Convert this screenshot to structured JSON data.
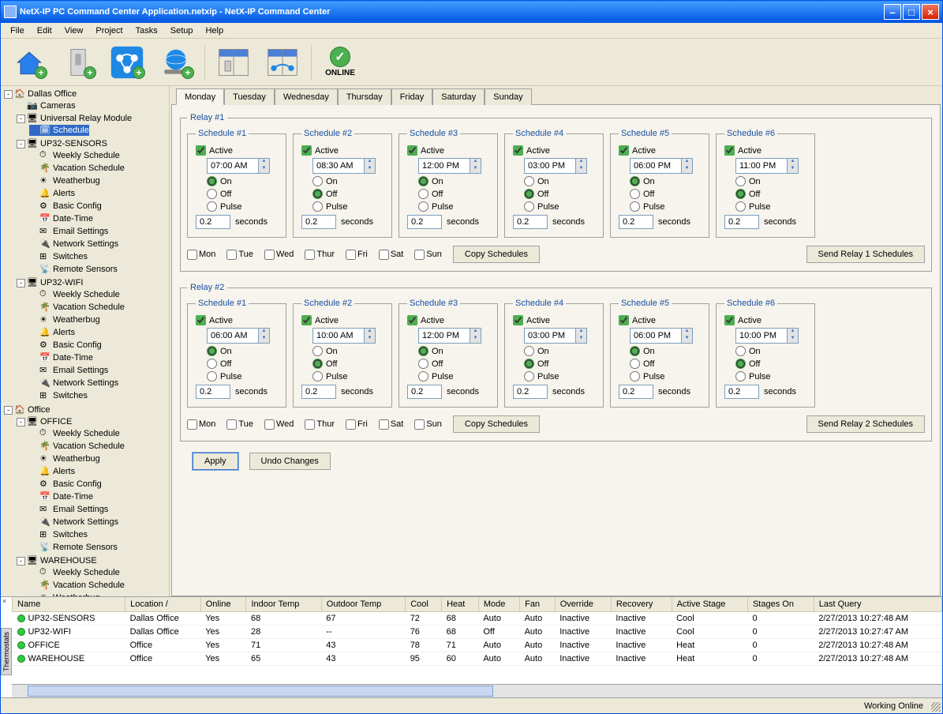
{
  "title": "NetX-IP PC Command Center Application.netxip - NetX-IP Command Center",
  "menu": [
    "File",
    "Edit",
    "View",
    "Project",
    "Tasks",
    "Setup",
    "Help"
  ],
  "onlineLabel": "ONLINE",
  "tree": {
    "root": [
      {
        "label": "Dallas Office",
        "exp": "-",
        "children": [
          {
            "label": "Cameras"
          },
          {
            "label": "Universal Relay Module",
            "exp": "-",
            "children": [
              {
                "label": "Schedule",
                "sel": true
              }
            ]
          },
          {
            "label": "UP32-SENSORS",
            "exp": "-",
            "children": [
              {
                "label": "Weekly Schedule"
              },
              {
                "label": "Vacation Schedule"
              },
              {
                "label": "Weatherbug"
              },
              {
                "label": "Alerts"
              },
              {
                "label": "Basic Config"
              },
              {
                "label": "Date-Time"
              },
              {
                "label": "Email Settings"
              },
              {
                "label": "Network Settings"
              },
              {
                "label": "Switches"
              },
              {
                "label": "Remote Sensors"
              }
            ]
          },
          {
            "label": "UP32-WIFI",
            "exp": "-",
            "children": [
              {
                "label": "Weekly Schedule"
              },
              {
                "label": "Vacation Schedule"
              },
              {
                "label": "Weatherbug"
              },
              {
                "label": "Alerts"
              },
              {
                "label": "Basic Config"
              },
              {
                "label": "Date-Time"
              },
              {
                "label": "Email Settings"
              },
              {
                "label": "Network Settings"
              },
              {
                "label": "Switches"
              }
            ]
          }
        ]
      },
      {
        "label": "Office",
        "exp": "-",
        "children": [
          {
            "label": "OFFICE",
            "exp": "-",
            "children": [
              {
                "label": "Weekly Schedule"
              },
              {
                "label": "Vacation Schedule"
              },
              {
                "label": "Weatherbug"
              },
              {
                "label": "Alerts"
              },
              {
                "label": "Basic Config"
              },
              {
                "label": "Date-Time"
              },
              {
                "label": "Email Settings"
              },
              {
                "label": "Network Settings"
              },
              {
                "label": "Switches"
              },
              {
                "label": "Remote Sensors"
              }
            ]
          },
          {
            "label": "WAREHOUSE",
            "exp": "-",
            "children": [
              {
                "label": "Weekly Schedule"
              },
              {
                "label": "Vacation Schedule"
              },
              {
                "label": "Weatherbug"
              }
            ]
          }
        ]
      }
    ]
  },
  "dayTabs": [
    "Monday",
    "Tuesday",
    "Wednesday",
    "Thursday",
    "Friday",
    "Saturday",
    "Sunday"
  ],
  "activeDayTab": 0,
  "sched": {
    "activeLabel": "Active",
    "onLabel": "On",
    "offLabel": "Off",
    "pulseLabel": "Pulse",
    "secondsLabel": "seconds",
    "copyBtn": "Copy Schedules",
    "days": [
      "Mon",
      "Tue",
      "Wed",
      "Thur",
      "Fri",
      "Sat",
      "Sun"
    ]
  },
  "relays": [
    {
      "title": "Relay #1",
      "sendBtn": "Send Relay 1 Schedules",
      "schedules": [
        {
          "title": "Schedule #1",
          "active": true,
          "time": "07:00 AM",
          "mode": "On",
          "pulse": "0.2"
        },
        {
          "title": "Schedule #2",
          "active": true,
          "time": "08:30 AM",
          "mode": "Off",
          "pulse": "0.2"
        },
        {
          "title": "Schedule #3",
          "active": true,
          "time": "12:00 PM",
          "mode": "On",
          "pulse": "0.2"
        },
        {
          "title": "Schedule #4",
          "active": true,
          "time": "03:00 PM",
          "mode": "Off",
          "pulse": "0.2"
        },
        {
          "title": "Schedule #5",
          "active": true,
          "time": "06:00 PM",
          "mode": "On",
          "pulse": "0.2"
        },
        {
          "title": "Schedule #6",
          "active": true,
          "time": "11:00 PM",
          "mode": "Off",
          "pulse": "0.2"
        }
      ]
    },
    {
      "title": "Relay #2",
      "sendBtn": "Send Relay 2 Schedules",
      "schedules": [
        {
          "title": "Schedule #1",
          "active": true,
          "time": "06:00 AM",
          "mode": "On",
          "pulse": "0.2"
        },
        {
          "title": "Schedule #2",
          "active": true,
          "time": "10:00 AM",
          "mode": "Off",
          "pulse": "0.2"
        },
        {
          "title": "Schedule #3",
          "active": true,
          "time": "12:00 PM",
          "mode": "On",
          "pulse": "0.2"
        },
        {
          "title": "Schedule #4",
          "active": true,
          "time": "03:00 PM",
          "mode": "Off",
          "pulse": "0.2"
        },
        {
          "title": "Schedule #5",
          "active": true,
          "time": "06:00 PM",
          "mode": "On",
          "pulse": "0.2"
        },
        {
          "title": "Schedule #6",
          "active": true,
          "time": "10:00 PM",
          "mode": "Off",
          "pulse": "0.2"
        }
      ]
    }
  ],
  "applyBtn": "Apply",
  "undoBtn": "Undo Changes",
  "grid": {
    "columns": [
      "Name",
      "Location",
      "Online",
      "Indoor Temp",
      "Outdoor Temp",
      "Cool",
      "Heat",
      "Mode",
      "Fan",
      "Override",
      "Recovery",
      "Active Stage",
      "Stages On",
      "Last Query"
    ],
    "sortCol": 1,
    "rows": [
      [
        "UP32-SENSORS",
        "Dallas Office",
        "Yes",
        "68",
        "67",
        "72",
        "68",
        "Auto",
        "Auto",
        "Inactive",
        "Inactive",
        "Cool",
        "0",
        "2/27/2013  10:27:48 AM"
      ],
      [
        "UP32-WIFI",
        "Dallas Office",
        "Yes",
        "28",
        "--",
        "76",
        "68",
        "Off",
        "Auto",
        "Inactive",
        "Inactive",
        "Cool",
        "0",
        "2/27/2013  10:27:47 AM"
      ],
      [
        "OFFICE",
        "Office",
        "Yes",
        "71",
        "43",
        "78",
        "71",
        "Auto",
        "Auto",
        "Inactive",
        "Inactive",
        "Heat",
        "0",
        "2/27/2013  10:27:48 AM"
      ],
      [
        "WAREHOUSE",
        "Office",
        "Yes",
        "65",
        "43",
        "95",
        "60",
        "Auto",
        "Auto",
        "Inactive",
        "Inactive",
        "Heat",
        "0",
        "2/27/2013  10:27:48 AM"
      ]
    ]
  },
  "thermostatsTab": "Thermostats",
  "status": "Working Online",
  "iconColors": {
    "home": "#2a80ea",
    "switch": "#b0b0b0",
    "net": "#1e88e5",
    "globe": "#1e88e5",
    "tree_site": "#4fa8e0",
    "tree_cam": "#666",
    "tree_module": "#555",
    "tree_sched": "#555",
    "tree_device": "#888",
    "tree_weekly": "#3b6fc4",
    "tree_vac": "#20a060",
    "tree_wb": "#f0a030",
    "tree_alert": "#d03030",
    "tree_cfg": "#888",
    "tree_dt": "#d03030",
    "tree_email": "#3b6fc4",
    "tree_net": "#555",
    "tree_sw": "#555",
    "tree_rs": "#f0a030"
  }
}
